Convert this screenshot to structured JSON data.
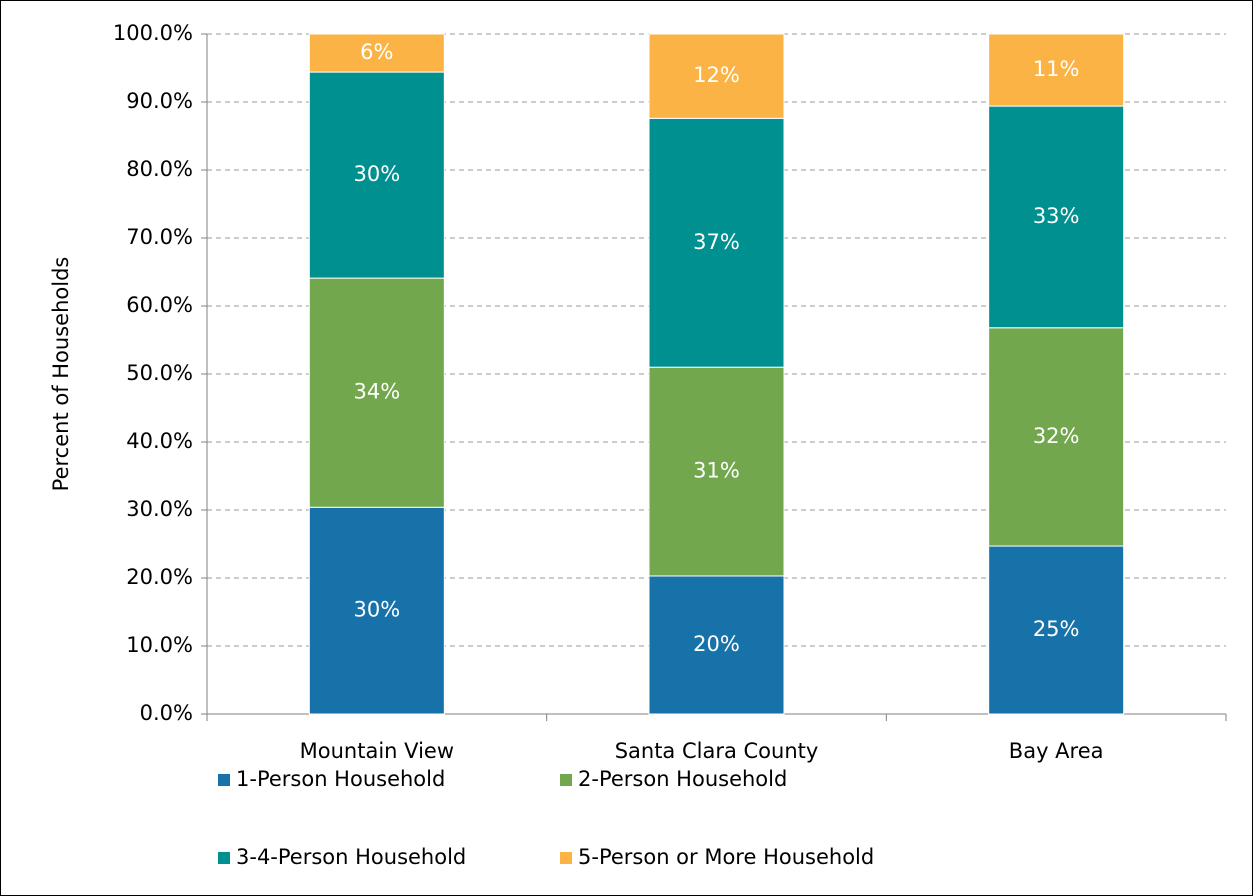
{
  "chart_data": {
    "type": "stacked_bar",
    "y_label": "Percent of Households",
    "categories": [
      "Mountain View",
      "Santa Clara County",
      "Bay Area"
    ],
    "series": [
      {
        "name": "1-Person Household",
        "color": "#1672a8",
        "values": [
          30.4,
          20.3,
          24.7
        ],
        "value_labels": [
          "30%",
          "20%",
          "25%"
        ]
      },
      {
        "name": "2-Person Household",
        "color": "#72a74d",
        "values": [
          33.7,
          30.7,
          32.1
        ],
        "value_labels": [
          "34%",
          "31%",
          "32%"
        ]
      },
      {
        "name": "3-4-Person Household",
        "color": "#009090",
        "values": [
          30.3,
          36.6,
          32.6
        ],
        "value_labels": [
          "30%",
          "37%",
          "33%"
        ]
      },
      {
        "name": "5-Person or More Household",
        "color": "#fbb345",
        "values": [
          5.6,
          12.4,
          10.6
        ],
        "value_labels": [
          "6%",
          "12%",
          "11%"
        ]
      }
    ],
    "ylim": [
      0,
      100
    ],
    "yticks": [
      {
        "value": 0,
        "label": "0.0%"
      },
      {
        "value": 10,
        "label": "10.0%"
      },
      {
        "value": 20,
        "label": "20.0%"
      },
      {
        "value": 30,
        "label": "30.0%"
      },
      {
        "value": 40,
        "label": "40.0%"
      },
      {
        "value": 50,
        "label": "50.0%"
      },
      {
        "value": 60,
        "label": "60.0%"
      },
      {
        "value": 70,
        "label": "70.0%"
      },
      {
        "value": 80,
        "label": "80.0%"
      },
      {
        "value": 90,
        "label": "90.0%"
      },
      {
        "value": 100,
        "label": "100.0%"
      }
    ],
    "grid": true,
    "legend": "bottom"
  }
}
